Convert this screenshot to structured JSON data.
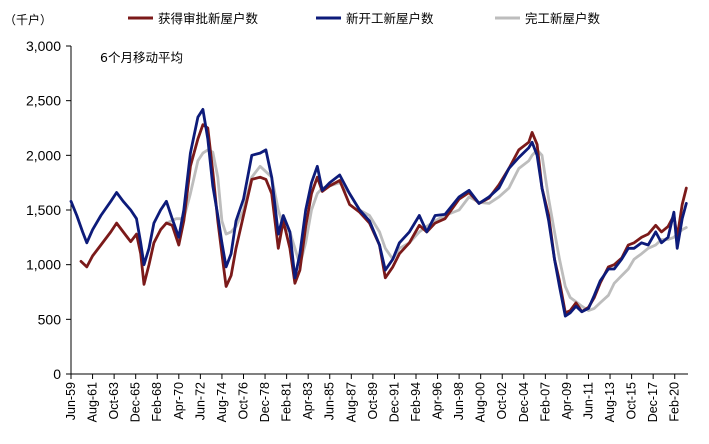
{
  "chart_data": {
    "type": "line",
    "unit": "（千户）",
    "annotation": "6个月移动平均",
    "ylim": [
      0,
      3000
    ],
    "y_ticks": [
      "0",
      "500",
      "1,000",
      "1,500",
      "2,000",
      "2,500",
      "3,000"
    ],
    "y_tick_values": [
      0,
      500,
      1000,
      1500,
      2000,
      2500,
      3000
    ],
    "x_range": [
      "1959-06",
      "2021-06"
    ],
    "x_ticks": [
      {
        "label": "Jun-59",
        "date": "1959-06"
      },
      {
        "label": "Aug-61",
        "date": "1961-08"
      },
      {
        "label": "Oct-63",
        "date": "1963-10"
      },
      {
        "label": "Dec-65",
        "date": "1965-12"
      },
      {
        "label": "Feb-68",
        "date": "1968-02"
      },
      {
        "label": "Apr-70",
        "date": "1970-04"
      },
      {
        "label": "Jun-72",
        "date": "1972-06"
      },
      {
        "label": "Aug-74",
        "date": "1974-08"
      },
      {
        "label": "Oct-76",
        "date": "1976-10"
      },
      {
        "label": "Dec-78",
        "date": "1978-12"
      },
      {
        "label": "Feb-81",
        "date": "1981-02"
      },
      {
        "label": "Apr-83",
        "date": "1983-04"
      },
      {
        "label": "Jun-85",
        "date": "1985-06"
      },
      {
        "label": "Aug-87",
        "date": "1987-08"
      },
      {
        "label": "Oct-89",
        "date": "1989-10"
      },
      {
        "label": "Dec-91",
        "date": "1991-12"
      },
      {
        "label": "Feb-94",
        "date": "1994-02"
      },
      {
        "label": "Apr-96",
        "date": "1996-04"
      },
      {
        "label": "Jun-98",
        "date": "1998-06"
      },
      {
        "label": "Aug-00",
        "date": "2000-08"
      },
      {
        "label": "Oct-02",
        "date": "2002-10"
      },
      {
        "label": "Dec-04",
        "date": "2004-12"
      },
      {
        "label": "Feb-07",
        "date": "2007-02"
      },
      {
        "label": "Apr-09",
        "date": "2009-04"
      },
      {
        "label": "Jun-11",
        "date": "2011-06"
      },
      {
        "label": "Aug-13",
        "date": "2013-08"
      },
      {
        "label": "Oct-15",
        "date": "2015-10"
      },
      {
        "label": "Dec-17",
        "date": "2017-12"
      },
      {
        "label": "Feb-20",
        "date": "2020-02"
      }
    ],
    "series": [
      {
        "name": "获得审批新屋户数",
        "color": "#7B1A1A",
        "points": [
          [
            "1960-06",
            1030
          ],
          [
            "1961-01",
            980
          ],
          [
            "1961-08",
            1080
          ],
          [
            "1962-06",
            1180
          ],
          [
            "1963-06",
            1300
          ],
          [
            "1964-01",
            1380
          ],
          [
            "1964-09",
            1300
          ],
          [
            "1965-06",
            1210
          ],
          [
            "1966-01",
            1280
          ],
          [
            "1966-06",
            1100
          ],
          [
            "1966-10",
            820
          ],
          [
            "1967-04",
            1000
          ],
          [
            "1967-10",
            1200
          ],
          [
            "1968-06",
            1320
          ],
          [
            "1969-01",
            1380
          ],
          [
            "1969-08",
            1360
          ],
          [
            "1970-04",
            1180
          ],
          [
            "1970-10",
            1400
          ],
          [
            "1971-06",
            1900
          ],
          [
            "1972-03",
            2150
          ],
          [
            "1972-09",
            2280
          ],
          [
            "1973-03",
            2250
          ],
          [
            "1973-09",
            1850
          ],
          [
            "1974-03",
            1400
          ],
          [
            "1974-08",
            1100
          ],
          [
            "1975-01",
            800
          ],
          [
            "1975-07",
            900
          ],
          [
            "1976-01",
            1150
          ],
          [
            "1976-10",
            1450
          ],
          [
            "1977-08",
            1780
          ],
          [
            "1978-06",
            1800
          ],
          [
            "1979-01",
            1780
          ],
          [
            "1979-08",
            1650
          ],
          [
            "1980-04",
            1150
          ],
          [
            "1980-10",
            1400
          ],
          [
            "1981-06",
            1150
          ],
          [
            "1981-12",
            830
          ],
          [
            "1982-06",
            950
          ],
          [
            "1983-01",
            1350
          ],
          [
            "1983-08",
            1650
          ],
          [
            "1984-03",
            1800
          ],
          [
            "1984-09",
            1670
          ],
          [
            "1985-06",
            1720
          ],
          [
            "1986-06",
            1770
          ],
          [
            "1987-06",
            1550
          ],
          [
            "1988-06",
            1480
          ],
          [
            "1989-06",
            1380
          ],
          [
            "1990-06",
            1180
          ],
          [
            "1991-01",
            880
          ],
          [
            "1991-10",
            980
          ],
          [
            "1992-06",
            1100
          ],
          [
            "1993-06",
            1200
          ],
          [
            "1994-06",
            1360
          ],
          [
            "1995-03",
            1300
          ],
          [
            "1996-01",
            1380
          ],
          [
            "1997-01",
            1420
          ],
          [
            "1998-06",
            1600
          ],
          [
            "1999-06",
            1660
          ],
          [
            "2000-06",
            1560
          ],
          [
            "2001-06",
            1610
          ],
          [
            "2002-06",
            1730
          ],
          [
            "2003-06",
            1880
          ],
          [
            "2004-06",
            2050
          ],
          [
            "2005-06",
            2120
          ],
          [
            "2005-10",
            2210
          ],
          [
            "2006-04",
            2100
          ],
          [
            "2006-10",
            1700
          ],
          [
            "2007-06",
            1450
          ],
          [
            "2008-01",
            1050
          ],
          [
            "2008-07",
            850
          ],
          [
            "2009-02",
            560
          ],
          [
            "2009-08",
            580
          ],
          [
            "2010-03",
            650
          ],
          [
            "2010-10",
            570
          ],
          [
            "2011-06",
            610
          ],
          [
            "2012-01",
            700
          ],
          [
            "2012-08",
            830
          ],
          [
            "2013-06",
            980
          ],
          [
            "2014-01",
            1000
          ],
          [
            "2014-10",
            1060
          ],
          [
            "2015-06",
            1180
          ],
          [
            "2016-01",
            1200
          ],
          [
            "2016-10",
            1250
          ],
          [
            "2017-06",
            1280
          ],
          [
            "2018-03",
            1360
          ],
          [
            "2018-10",
            1300
          ],
          [
            "2019-06",
            1350
          ],
          [
            "2020-01",
            1450
          ],
          [
            "2020-05",
            1250
          ],
          [
            "2020-11",
            1550
          ],
          [
            "2021-04",
            1700
          ]
        ]
      },
      {
        "name": "新开工新屋户数",
        "color": "#0D1B7A",
        "points": [
          [
            "1959-06",
            1580
          ],
          [
            "1960-01",
            1450
          ],
          [
            "1960-08",
            1300
          ],
          [
            "1961-01",
            1200
          ],
          [
            "1961-08",
            1320
          ],
          [
            "1962-06",
            1450
          ],
          [
            "1963-06",
            1580
          ],
          [
            "1964-01",
            1660
          ],
          [
            "1964-09",
            1580
          ],
          [
            "1965-06",
            1500
          ],
          [
            "1966-01",
            1420
          ],
          [
            "1966-06",
            1200
          ],
          [
            "1966-10",
            1000
          ],
          [
            "1967-04",
            1150
          ],
          [
            "1967-10",
            1380
          ],
          [
            "1968-06",
            1500
          ],
          [
            "1969-01",
            1580
          ],
          [
            "1969-08",
            1420
          ],
          [
            "1970-04",
            1250
          ],
          [
            "1970-10",
            1500
          ],
          [
            "1971-06",
            2020
          ],
          [
            "1972-03",
            2350
          ],
          [
            "1972-09",
            2420
          ],
          [
            "1973-03",
            2150
          ],
          [
            "1973-09",
            1720
          ],
          [
            "1974-03",
            1450
          ],
          [
            "1974-08",
            1200
          ],
          [
            "1975-01",
            980
          ],
          [
            "1975-07",
            1100
          ],
          [
            "1976-01",
            1400
          ],
          [
            "1976-10",
            1600
          ],
          [
            "1977-08",
            2000
          ],
          [
            "1978-06",
            2020
          ],
          [
            "1979-01",
            2050
          ],
          [
            "1979-08",
            1800
          ],
          [
            "1980-04",
            1280
          ],
          [
            "1980-10",
            1450
          ],
          [
            "1981-06",
            1300
          ],
          [
            "1981-12",
            880
          ],
          [
            "1982-06",
            1100
          ],
          [
            "1983-01",
            1500
          ],
          [
            "1983-08",
            1750
          ],
          [
            "1984-03",
            1900
          ],
          [
            "1984-09",
            1680
          ],
          [
            "1985-06",
            1750
          ],
          [
            "1986-06",
            1820
          ],
          [
            "1987-06",
            1650
          ],
          [
            "1988-06",
            1500
          ],
          [
            "1989-06",
            1400
          ],
          [
            "1990-06",
            1180
          ],
          [
            "1991-01",
            950
          ],
          [
            "1991-10",
            1050
          ],
          [
            "1992-06",
            1200
          ],
          [
            "1993-06",
            1300
          ],
          [
            "1994-06",
            1450
          ],
          [
            "1995-03",
            1300
          ],
          [
            "1996-01",
            1450
          ],
          [
            "1997-01",
            1460
          ],
          [
            "1998-06",
            1620
          ],
          [
            "1999-06",
            1680
          ],
          [
            "2000-06",
            1560
          ],
          [
            "2001-06",
            1620
          ],
          [
            "2002-06",
            1700
          ],
          [
            "2003-06",
            1880
          ],
          [
            "2004-06",
            1980
          ],
          [
            "2005-06",
            2070
          ],
          [
            "2005-10",
            2120
          ],
          [
            "2006-04",
            2000
          ],
          [
            "2006-10",
            1700
          ],
          [
            "2007-06",
            1400
          ],
          [
            "2008-01",
            1050
          ],
          [
            "2008-07",
            800
          ],
          [
            "2009-02",
            530
          ],
          [
            "2009-08",
            560
          ],
          [
            "2010-03",
            620
          ],
          [
            "2010-10",
            570
          ],
          [
            "2011-06",
            600
          ],
          [
            "2012-01",
            720
          ],
          [
            "2012-08",
            850
          ],
          [
            "2013-06",
            960
          ],
          [
            "2014-01",
            960
          ],
          [
            "2014-10",
            1050
          ],
          [
            "2015-06",
            1150
          ],
          [
            "2016-01",
            1150
          ],
          [
            "2016-10",
            1200
          ],
          [
            "2017-06",
            1180
          ],
          [
            "2018-03",
            1300
          ],
          [
            "2018-10",
            1200
          ],
          [
            "2019-06",
            1250
          ],
          [
            "2020-01",
            1480
          ],
          [
            "2020-05",
            1150
          ],
          [
            "2020-11",
            1420
          ],
          [
            "2021-04",
            1560
          ]
        ]
      },
      {
        "name": "完工新屋户数",
        "color": "#BDBDBD",
        "points": [
          [
            "1969-01",
            1380
          ],
          [
            "1970-01",
            1420
          ],
          [
            "1970-10",
            1420
          ],
          [
            "1971-06",
            1650
          ],
          [
            "1972-03",
            1950
          ],
          [
            "1972-09",
            2020
          ],
          [
            "1973-03",
            2050
          ],
          [
            "1973-09",
            2030
          ],
          [
            "1974-03",
            1800
          ],
          [
            "1974-08",
            1400
          ],
          [
            "1975-01",
            1280
          ],
          [
            "1975-07",
            1300
          ],
          [
            "1976-01",
            1350
          ],
          [
            "1976-10",
            1500
          ],
          [
            "1977-08",
            1800
          ],
          [
            "1978-06",
            1900
          ],
          [
            "1979-01",
            1850
          ],
          [
            "1979-08",
            1800
          ],
          [
            "1980-04",
            1500
          ],
          [
            "1980-10",
            1350
          ],
          [
            "1981-06",
            1300
          ],
          [
            "1981-12",
            1150
          ],
          [
            "1982-06",
            1000
          ],
          [
            "1983-01",
            1200
          ],
          [
            "1983-08",
            1500
          ],
          [
            "1984-03",
            1650
          ],
          [
            "1984-09",
            1700
          ],
          [
            "1985-06",
            1720
          ],
          [
            "1986-06",
            1750
          ],
          [
            "1987-06",
            1650
          ],
          [
            "1988-06",
            1500
          ],
          [
            "1989-06",
            1450
          ],
          [
            "1990-06",
            1300
          ],
          [
            "1991-01",
            1150
          ],
          [
            "1991-10",
            1050
          ],
          [
            "1992-06",
            1150
          ],
          [
            "1993-06",
            1200
          ],
          [
            "1994-06",
            1300
          ],
          [
            "1995-03",
            1350
          ],
          [
            "1996-01",
            1400
          ],
          [
            "1997-01",
            1450
          ],
          [
            "1998-06",
            1500
          ],
          [
            "1999-06",
            1620
          ],
          [
            "2000-06",
            1570
          ],
          [
            "2001-06",
            1560
          ],
          [
            "2002-06",
            1620
          ],
          [
            "2003-06",
            1700
          ],
          [
            "2004-06",
            1880
          ],
          [
            "2005-06",
            1950
          ],
          [
            "2005-10",
            2000
          ],
          [
            "2006-04",
            2050
          ],
          [
            "2006-10",
            2000
          ],
          [
            "2007-06",
            1600
          ],
          [
            "2008-01",
            1300
          ],
          [
            "2008-07",
            1050
          ],
          [
            "2009-02",
            800
          ],
          [
            "2009-08",
            700
          ],
          [
            "2010-03",
            660
          ],
          [
            "2010-10",
            620
          ],
          [
            "2011-06",
            580
          ],
          [
            "2012-01",
            600
          ],
          [
            "2012-08",
            650
          ],
          [
            "2013-06",
            720
          ],
          [
            "2014-01",
            830
          ],
          [
            "2014-10",
            900
          ],
          [
            "2015-06",
            960
          ],
          [
            "2016-01",
            1050
          ],
          [
            "2016-10",
            1100
          ],
          [
            "2017-06",
            1150
          ],
          [
            "2018-03",
            1180
          ],
          [
            "2018-10",
            1230
          ],
          [
            "2019-06",
            1230
          ],
          [
            "2020-01",
            1250
          ],
          [
            "2020-05",
            1280
          ],
          [
            "2020-11",
            1320
          ],
          [
            "2021-04",
            1340
          ]
        ]
      }
    ]
  }
}
